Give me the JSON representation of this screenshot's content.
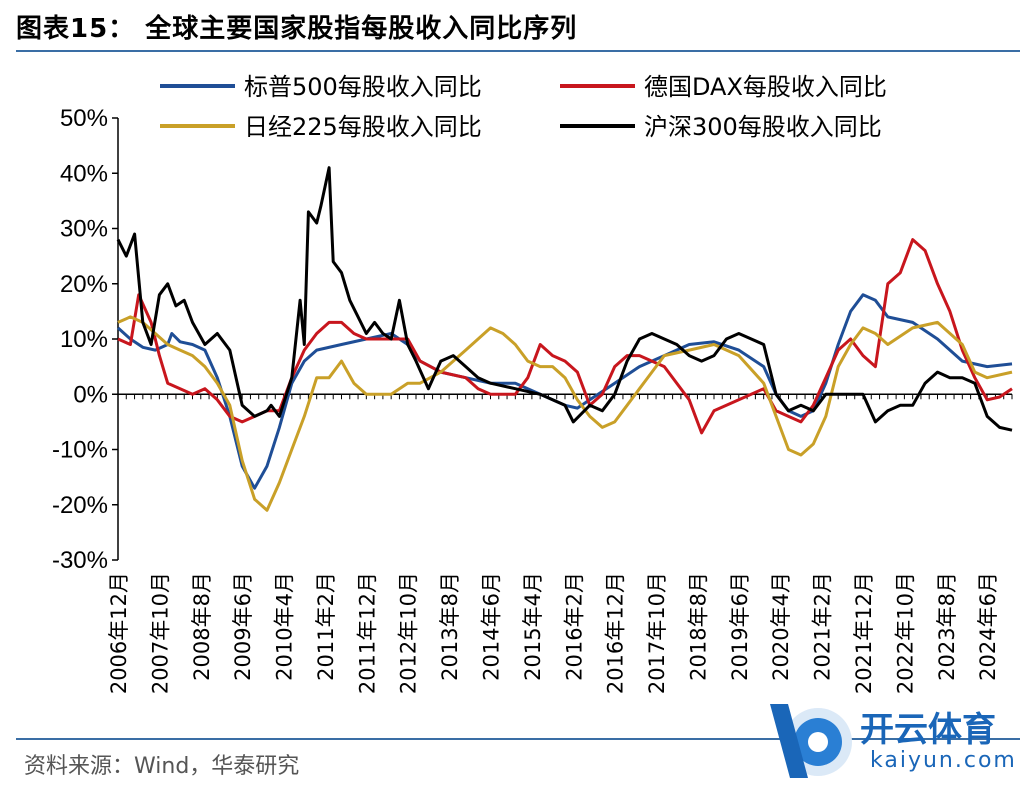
{
  "header": {
    "title": "图表15：  全球主要国家股指每股收入同比序列"
  },
  "footer": {
    "source": "资料来源：Wind，华泰研究"
  },
  "watermark": {
    "text": "开云体育",
    "sub": "kaiyun.com"
  },
  "chart_data": {
    "type": "line",
    "ylim": [
      -30,
      50
    ],
    "yticks": [
      "-30%",
      "-20%",
      "-10%",
      "0%",
      "10%",
      "20%",
      "30%",
      "40%",
      "50%"
    ],
    "xlim": [
      "2006-12",
      "2024-12"
    ],
    "xtick_labels": [
      "2006年12月",
      "2007年10月",
      "2008年8月",
      "2009年6月",
      "2010年4月",
      "2011年2月",
      "2011年12月",
      "2012年10月",
      "2013年8月",
      "2014年6月",
      "2015年4月",
      "2016年2月",
      "2016年12月",
      "2017年10月",
      "2018年8月",
      "2019年6月",
      "2020年4月",
      "2021年2月",
      "2021年12月",
      "2022年10月",
      "2023年8月",
      "2024年6月"
    ],
    "grid": false,
    "legend_position": "top",
    "series": [
      {
        "name": "标普500每股收入同比",
        "color": "#1f4e96",
        "points": [
          [
            "2006-12",
            12
          ],
          [
            "2007-03",
            10
          ],
          [
            "2007-06",
            8.5
          ],
          [
            "2007-09",
            8
          ],
          [
            "2007-12",
            9
          ],
          [
            "2008-01",
            11
          ],
          [
            "2008-03",
            9.5
          ],
          [
            "2008-06",
            9
          ],
          [
            "2008-09",
            8
          ],
          [
            "2008-12",
            3
          ],
          [
            "2009-03",
            -4
          ],
          [
            "2009-06",
            -13
          ],
          [
            "2009-09",
            -17
          ],
          [
            "2009-12",
            -13
          ],
          [
            "2010-03",
            -6
          ],
          [
            "2010-06",
            2
          ],
          [
            "2010-09",
            6
          ],
          [
            "2010-12",
            8
          ],
          [
            "2011-06",
            9
          ],
          [
            "2011-12",
            10
          ],
          [
            "2012-06",
            11
          ],
          [
            "2012-10",
            9
          ],
          [
            "2013-01",
            6
          ],
          [
            "2013-06",
            4
          ],
          [
            "2013-12",
            3
          ],
          [
            "2014-06",
            2
          ],
          [
            "2014-12",
            2
          ],
          [
            "2015-06",
            0
          ],
          [
            "2015-12",
            -2
          ],
          [
            "2016-03",
            -2.5
          ],
          [
            "2016-06",
            -1
          ],
          [
            "2016-12",
            2
          ],
          [
            "2017-06",
            5
          ],
          [
            "2017-12",
            7
          ],
          [
            "2018-06",
            9
          ],
          [
            "2018-12",
            9.5
          ],
          [
            "2019-06",
            8
          ],
          [
            "2019-12",
            5
          ],
          [
            "2020-03",
            0
          ],
          [
            "2020-06",
            -3
          ],
          [
            "2020-09",
            -4
          ],
          [
            "2020-12",
            -3
          ],
          [
            "2021-03",
            2
          ],
          [
            "2021-06",
            9
          ],
          [
            "2021-09",
            15
          ],
          [
            "2021-12",
            18
          ],
          [
            "2022-03",
            17
          ],
          [
            "2022-06",
            14
          ],
          [
            "2022-12",
            13
          ],
          [
            "2023-06",
            10
          ],
          [
            "2023-12",
            6
          ],
          [
            "2024-06",
            5
          ],
          [
            "2024-12",
            5.5
          ]
        ]
      },
      {
        "name": "德国DAX每股收入同比",
        "color": "#c8161d",
        "points": [
          [
            "2006-12",
            10
          ],
          [
            "2007-03",
            9
          ],
          [
            "2007-05",
            18
          ],
          [
            "2007-08",
            13
          ],
          [
            "2007-10",
            7
          ],
          [
            "2007-12",
            2
          ],
          [
            "2008-03",
            1
          ],
          [
            "2008-06",
            0
          ],
          [
            "2008-09",
            1
          ],
          [
            "2008-12",
            -1
          ],
          [
            "2009-03",
            -4
          ],
          [
            "2009-06",
            -5
          ],
          [
            "2009-09",
            -4
          ],
          [
            "2009-12",
            -3
          ],
          [
            "2010-03",
            -3
          ],
          [
            "2010-06",
            3
          ],
          [
            "2010-09",
            8
          ],
          [
            "2010-12",
            11
          ],
          [
            "2011-03",
            13
          ],
          [
            "2011-06",
            13
          ],
          [
            "2011-09",
            11
          ],
          [
            "2011-12",
            10
          ],
          [
            "2012-06",
            10
          ],
          [
            "2012-10",
            10
          ],
          [
            "2013-01",
            6
          ],
          [
            "2013-06",
            4
          ],
          [
            "2013-12",
            3
          ],
          [
            "2014-03",
            1
          ],
          [
            "2014-06",
            0
          ],
          [
            "2014-12",
            0
          ],
          [
            "2015-03",
            3
          ],
          [
            "2015-06",
            9
          ],
          [
            "2015-09",
            7
          ],
          [
            "2015-12",
            6
          ],
          [
            "2016-03",
            4
          ],
          [
            "2016-06",
            -2
          ],
          [
            "2016-09",
            0
          ],
          [
            "2016-12",
            5
          ],
          [
            "2017-03",
            7
          ],
          [
            "2017-06",
            7
          ],
          [
            "2017-09",
            6
          ],
          [
            "2017-12",
            5
          ],
          [
            "2018-06",
            -1
          ],
          [
            "2018-09",
            -7
          ],
          [
            "2018-12",
            -3
          ],
          [
            "2019-06",
            -1
          ],
          [
            "2019-12",
            1
          ],
          [
            "2020-03",
            -3
          ],
          [
            "2020-06",
            -4
          ],
          [
            "2020-09",
            -5
          ],
          [
            "2020-12",
            -2
          ],
          [
            "2021-03",
            3
          ],
          [
            "2021-06",
            8
          ],
          [
            "2021-09",
            10
          ],
          [
            "2021-12",
            7
          ],
          [
            "2022-03",
            5
          ],
          [
            "2022-06",
            20
          ],
          [
            "2022-09",
            22
          ],
          [
            "2022-12",
            28
          ],
          [
            "2023-03",
            26
          ],
          [
            "2023-06",
            20
          ],
          [
            "2023-09",
            15
          ],
          [
            "2023-12",
            8
          ],
          [
            "2024-03",
            3
          ],
          [
            "2024-06",
            -1
          ],
          [
            "2024-09",
            -0.5
          ],
          [
            "2024-12",
            1
          ]
        ]
      },
      {
        "name": "日经225每股收入同比",
        "color": "#c9a028",
        "points": [
          [
            "2006-12",
            13
          ],
          [
            "2007-03",
            14
          ],
          [
            "2007-06",
            13
          ],
          [
            "2007-09",
            11
          ],
          [
            "2007-12",
            9
          ],
          [
            "2008-03",
            8
          ],
          [
            "2008-06",
            7
          ],
          [
            "2008-09",
            5
          ],
          [
            "2008-12",
            2
          ],
          [
            "2009-03",
            -2
          ],
          [
            "2009-06",
            -12
          ],
          [
            "2009-09",
            -19
          ],
          [
            "2009-12",
            -21
          ],
          [
            "2010-03",
            -16
          ],
          [
            "2010-06",
            -10
          ],
          [
            "2010-09",
            -4
          ],
          [
            "2010-12",
            3
          ],
          [
            "2011-03",
            3
          ],
          [
            "2011-06",
            6
          ],
          [
            "2011-09",
            2
          ],
          [
            "2011-12",
            0
          ],
          [
            "2012-06",
            0
          ],
          [
            "2012-10",
            2
          ],
          [
            "2013-01",
            2
          ],
          [
            "2013-06",
            4
          ],
          [
            "2013-12",
            8
          ],
          [
            "2014-03",
            10
          ],
          [
            "2014-06",
            12
          ],
          [
            "2014-09",
            11
          ],
          [
            "2014-12",
            9
          ],
          [
            "2015-03",
            6
          ],
          [
            "2015-06",
            5
          ],
          [
            "2015-09",
            5
          ],
          [
            "2015-12",
            3
          ],
          [
            "2016-03",
            -1
          ],
          [
            "2016-06",
            -4
          ],
          [
            "2016-09",
            -6
          ],
          [
            "2016-12",
            -5
          ],
          [
            "2017-03",
            -2
          ],
          [
            "2017-06",
            1
          ],
          [
            "2017-09",
            4
          ],
          [
            "2017-12",
            7
          ],
          [
            "2018-06",
            8
          ],
          [
            "2018-12",
            9
          ],
          [
            "2019-06",
            7
          ],
          [
            "2019-12",
            2
          ],
          [
            "2020-03",
            -4
          ],
          [
            "2020-06",
            -10
          ],
          [
            "2020-09",
            -11
          ],
          [
            "2020-12",
            -9
          ],
          [
            "2021-03",
            -4
          ],
          [
            "2021-06",
            5
          ],
          [
            "2021-09",
            9
          ],
          [
            "2021-12",
            12
          ],
          [
            "2022-03",
            11
          ],
          [
            "2022-06",
            9
          ],
          [
            "2022-12",
            12
          ],
          [
            "2023-06",
            13
          ],
          [
            "2023-12",
            9
          ],
          [
            "2024-03",
            4
          ],
          [
            "2024-06",
            3
          ],
          [
            "2024-12",
            4
          ]
        ]
      },
      {
        "name": "沪深300每股收入同比",
        "color": "#000000",
        "points": [
          [
            "2006-12",
            28
          ],
          [
            "2007-02",
            25
          ],
          [
            "2007-04",
            29
          ],
          [
            "2007-06",
            13
          ],
          [
            "2007-08",
            9
          ],
          [
            "2007-10",
            18
          ],
          [
            "2007-12",
            20
          ],
          [
            "2008-02",
            16
          ],
          [
            "2008-04",
            17
          ],
          [
            "2008-06",
            13
          ],
          [
            "2008-09",
            9
          ],
          [
            "2008-12",
            11
          ],
          [
            "2009-03",
            8
          ],
          [
            "2009-06",
            -2
          ],
          [
            "2009-09",
            -4
          ],
          [
            "2009-12",
            -3
          ],
          [
            "2010-01",
            -2
          ],
          [
            "2010-03",
            -4
          ],
          [
            "2010-06",
            3
          ],
          [
            "2010-08",
            17
          ],
          [
            "2010-09",
            9
          ],
          [
            "2010-10",
            33
          ],
          [
            "2010-12",
            31
          ],
          [
            "2011-01",
            34
          ],
          [
            "2011-03",
            41
          ],
          [
            "2011-04",
            24
          ],
          [
            "2011-06",
            22
          ],
          [
            "2011-08",
            17
          ],
          [
            "2011-10",
            14
          ],
          [
            "2011-12",
            11
          ],
          [
            "2012-02",
            13
          ],
          [
            "2012-04",
            11
          ],
          [
            "2012-06",
            10
          ],
          [
            "2012-08",
            17
          ],
          [
            "2012-10",
            9
          ],
          [
            "2012-12",
            6
          ],
          [
            "2013-03",
            1
          ],
          [
            "2013-06",
            6
          ],
          [
            "2013-09",
            7
          ],
          [
            "2013-12",
            5
          ],
          [
            "2014-03",
            3
          ],
          [
            "2014-06",
            2
          ],
          [
            "2014-12",
            1
          ],
          [
            "2015-06",
            0
          ],
          [
            "2015-12",
            -2
          ],
          [
            "2016-02",
            -5
          ],
          [
            "2016-06",
            -2
          ],
          [
            "2016-09",
            -3
          ],
          [
            "2016-12",
            0
          ],
          [
            "2017-03",
            6
          ],
          [
            "2017-06",
            10
          ],
          [
            "2017-09",
            11
          ],
          [
            "2017-12",
            10
          ],
          [
            "2018-03",
            9
          ],
          [
            "2018-06",
            7
          ],
          [
            "2018-09",
            6
          ],
          [
            "2018-12",
            7
          ],
          [
            "2019-03",
            10
          ],
          [
            "2019-06",
            11
          ],
          [
            "2019-09",
            10
          ],
          [
            "2019-12",
            9
          ],
          [
            "2020-03",
            0
          ],
          [
            "2020-06",
            -3
          ],
          [
            "2020-09",
            -2
          ],
          [
            "2020-12",
            -3
          ],
          [
            "2021-03",
            0
          ],
          [
            "2021-06",
            0
          ],
          [
            "2021-09",
            0
          ],
          [
            "2021-12",
            0
          ],
          [
            "2022-03",
            -5
          ],
          [
            "2022-06",
            -3
          ],
          [
            "2022-09",
            -2
          ],
          [
            "2022-12",
            -2
          ],
          [
            "2023-03",
            2
          ],
          [
            "2023-06",
            4
          ],
          [
            "2023-09",
            3
          ],
          [
            "2023-12",
            3
          ],
          [
            "2024-03",
            2
          ],
          [
            "2024-06",
            -4
          ],
          [
            "2024-09",
            -6
          ],
          [
            "2024-12",
            -6.5
          ]
        ]
      }
    ]
  }
}
